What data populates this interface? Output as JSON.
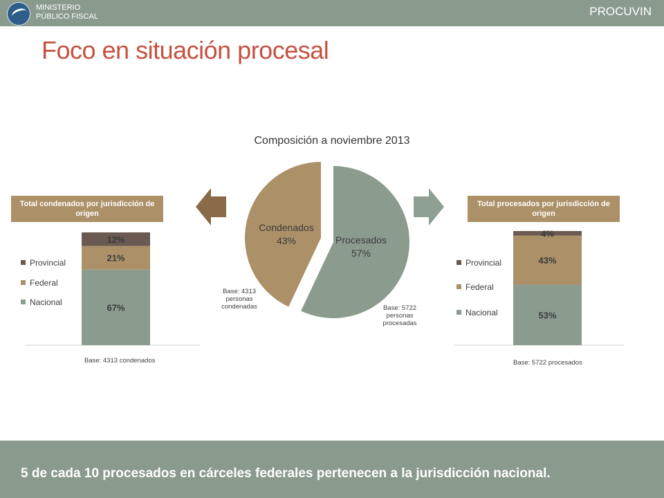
{
  "header": {
    "ministry_line1": "MINISTERIO",
    "ministry_line2": "PÚBLICO FISCAL",
    "brand": "PROCUVIN"
  },
  "title": "Foco en situación procesal",
  "tags": {
    "left": "Total condenados por jurisdicción de origen",
    "right": "Total procesados por jurisdicción de origen"
  },
  "colors": {
    "nacional": "#8b9c8f",
    "federal": "#ac9068",
    "provincial": "#6b5a52",
    "condenados": "#ac9068",
    "procesados": "#8b9c8f",
    "title": "#c6513f",
    "bar": "#8a9b8e"
  },
  "chart_data": [
    {
      "type": "pie",
      "title": "Composición a noviembre 2013",
      "slices": [
        {
          "label": "Procesados",
          "value": 57,
          "value_label": "57%",
          "note": "Base: 5722 personas procesadas"
        },
        {
          "label": "Condenados",
          "value": 43,
          "value_label": "43%",
          "note": "Base: 4313 personas condenadas"
        }
      ]
    },
    {
      "type": "bar",
      "stacked": true,
      "categories": [
        "Condenados"
      ],
      "series": [
        {
          "name": "Nacional",
          "values": [
            67
          ],
          "label": "67%"
        },
        {
          "name": "Federal",
          "values": [
            21
          ],
          "label": "21%"
        },
        {
          "name": "Provincial",
          "values": [
            12
          ],
          "label": "12%"
        }
      ],
      "ylim": [
        0,
        100
      ],
      "base": "Base: 4313 condenados",
      "legend": "left"
    },
    {
      "type": "bar",
      "stacked": true,
      "categories": [
        "Procesados"
      ],
      "series": [
        {
          "name": "Nacional",
          "values": [
            53
          ],
          "label": "53%"
        },
        {
          "name": "Federal",
          "values": [
            43
          ],
          "label": "43%"
        },
        {
          "name": "Provincial",
          "values": [
            4
          ],
          "label": "4%"
        }
      ],
      "ylim": [
        0,
        100
      ],
      "base": "Base: 5722 procesados",
      "legend": "left"
    }
  ],
  "footer": {
    "message": "5 de cada 10 procesados en cárceles federales pertenecen a la jurisdicción nacional."
  }
}
